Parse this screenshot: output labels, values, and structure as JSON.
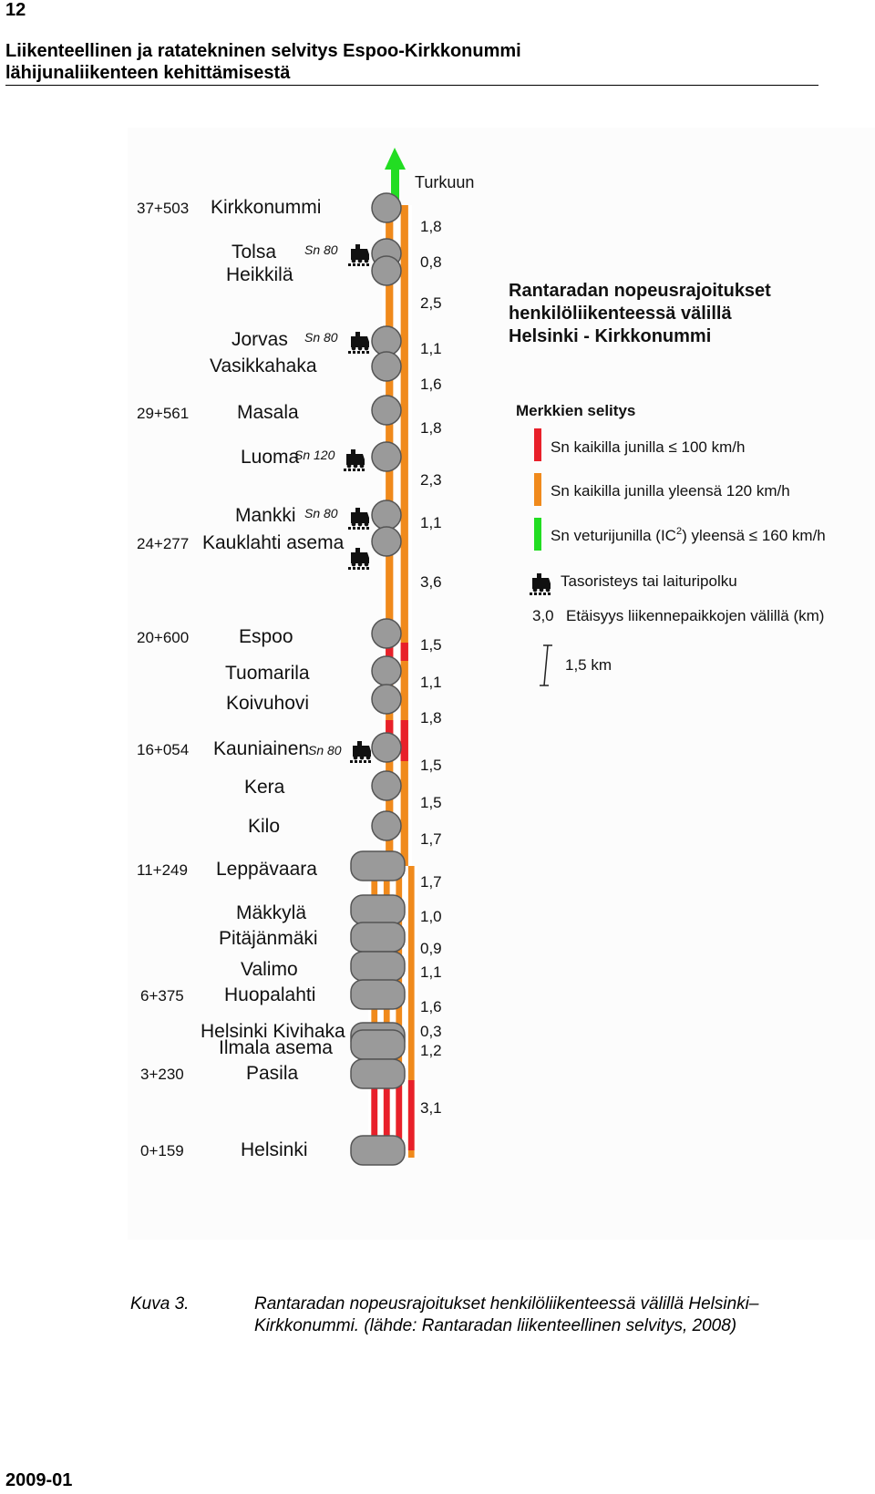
{
  "page": {
    "number": "12",
    "header_line1": "Liikenteellinen ja ratatekninen selvitys Espoo-Kirkkonummi",
    "header_line2": "lähijunaliikenteen kehittämisestä",
    "footer": "2009-01"
  },
  "caption": {
    "label": "Kuva 3.",
    "text": "Rantaradan nopeusrajoitukset henkilöliikenteessä välillä Helsinki–Kirkkonummi. (lähde: Rantaradan liikenteellinen selvitys, 2008)"
  },
  "diagram": {
    "title_lines": [
      "Rantaradan nopeusrajoitukset",
      "henkilöliikenteessä välillä",
      "Helsinki - Kirkkonummi"
    ],
    "direction_label": "Turkuun",
    "stations": [
      {
        "km": "37+503",
        "name": "Kirkkonummi",
        "platform": "",
        "note": ""
      },
      {
        "km": "",
        "name": "Tolsa",
        "platform": "",
        "note": "Sn 80"
      },
      {
        "km": "",
        "name": "Heikkilä",
        "platform": "",
        "note": ""
      },
      {
        "km": "",
        "name": "Jorvas",
        "platform": "",
        "note": "Sn 80"
      },
      {
        "km": "",
        "name": "Vasikkahaka",
        "platform": "",
        "note": ""
      },
      {
        "km": "29+561",
        "name": "Masala",
        "platform": "",
        "note": ""
      },
      {
        "km": "",
        "name": "Luoma",
        "platform": "",
        "note": "Sn 120"
      },
      {
        "km": "",
        "name": "Mankki",
        "platform": "",
        "note": "Sn 80"
      },
      {
        "km": "24+277",
        "name": "Kauklahti asema",
        "platform": "",
        "note": ""
      },
      {
        "km": "20+600",
        "name": "Espoo",
        "platform": "",
        "note": ""
      },
      {
        "km": "",
        "name": "Tuomarila",
        "platform": "",
        "note": ""
      },
      {
        "km": "",
        "name": "Koivuhovi",
        "platform": "",
        "note": ""
      },
      {
        "km": "16+054",
        "name": "Kauniainen",
        "platform": "",
        "note": "Sn 80"
      },
      {
        "km": "",
        "name": "Kera",
        "platform": "",
        "note": ""
      },
      {
        "km": "",
        "name": "Kilo",
        "platform": "",
        "note": ""
      },
      {
        "km": "11+249",
        "name": "Leppävaara",
        "platform": "",
        "note": ""
      },
      {
        "km": "",
        "name": "Mäkkylä",
        "platform": "",
        "note": ""
      },
      {
        "km": "",
        "name": "Pitäjänmäki",
        "platform": "",
        "note": ""
      },
      {
        "km": "",
        "name": "Valimo",
        "platform": "",
        "note": ""
      },
      {
        "km": "6+375",
        "name": "Huopalahti",
        "platform": "",
        "note": ""
      },
      {
        "km": "",
        "name": "Helsinki Kivihaka",
        "platform": "",
        "note": ""
      },
      {
        "km": "",
        "name": "Ilmala asema",
        "platform": "",
        "note": ""
      },
      {
        "km": "3+230",
        "name": "Pasila",
        "platform": "",
        "note": ""
      },
      {
        "km": "0+159",
        "name": "Helsinki",
        "platform": "",
        "note": ""
      }
    ],
    "crossing_notes": [],
    "distances": [
      "1,8",
      "0,8",
      "2,5",
      "1,1",
      "1,6",
      "1,8",
      "2,3",
      "1,1",
      "3,6",
      "1,5",
      "1,1",
      "1,8",
      "1,5",
      "1,5",
      "1,7",
      "1,7",
      "1,0",
      "0,9",
      "1,1",
      "1,6",
      "0,3",
      "1,2",
      "3,1"
    ],
    "legend": {
      "title": "Merkkien selitys",
      "red": "Sn kaikilla junilla ≤ 100 km/h",
      "orange": "Sn kaikilla junilla yleensä 120 km/h",
      "green_pre": "Sn veturijunilla (IC",
      "green_sup": "2",
      "green_post": ") yleensä ≤ 160 km/h",
      "crossing": "Tasoristeys tai laituripolku",
      "distance_value": "3,0",
      "distance_text": "Etäisyys liikennepaikkojen välillä (km)",
      "scale": "1,5 km"
    },
    "colors": {
      "red": "#e8202a",
      "orange": "#f08a1c",
      "green": "#22dd22",
      "station_fill": "#9a9a9a",
      "track_white": "#ffffff"
    }
  }
}
